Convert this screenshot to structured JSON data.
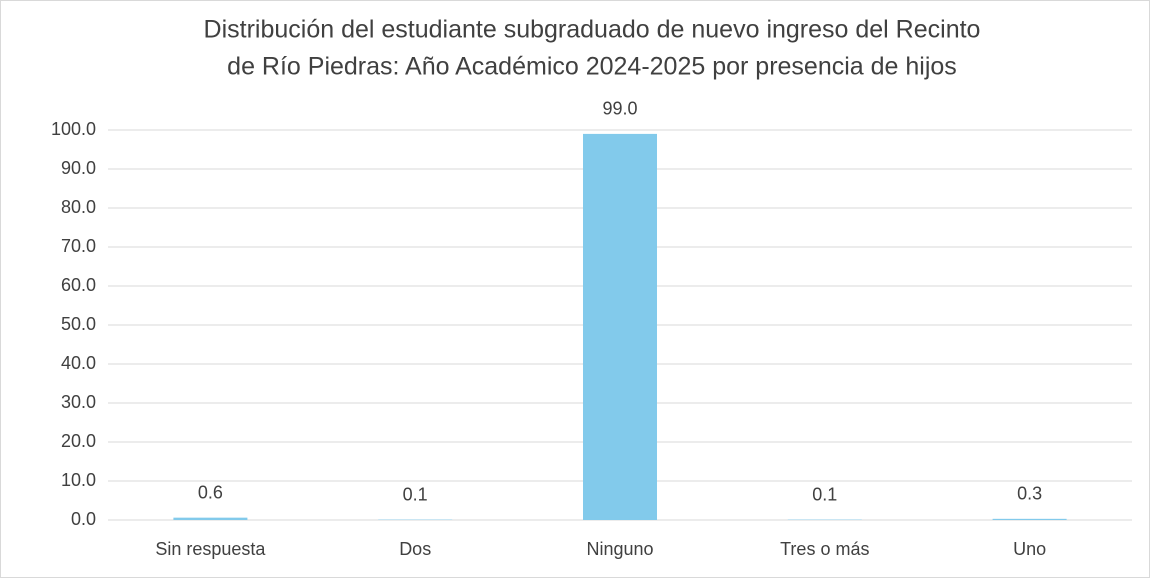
{
  "chart_data": {
    "type": "bar",
    "title": [
      "Distribución del estudiante subgraduado de nuevo ingreso del Recinto",
      "de Río Piedras: Año Académico 2024-2025 por presencia de hijos"
    ],
    "categories": [
      "Sin respuesta",
      "Dos",
      "Ninguno",
      "Tres o más",
      "Uno"
    ],
    "values": [
      0.6,
      0.1,
      99.0,
      0.1,
      0.3
    ],
    "value_labels": [
      "0.6",
      "0.1",
      "99.0",
      "0.1",
      "0.3"
    ],
    "color": "#82caeb",
    "ylim": [
      0,
      100
    ],
    "yticks": [
      {
        "value": 0,
        "label": "0.0"
      },
      {
        "value": 10,
        "label": "10.0"
      },
      {
        "value": 20,
        "label": "20.0"
      },
      {
        "value": 30,
        "label": "30.0"
      },
      {
        "value": 40,
        "label": "40.0"
      },
      {
        "value": 50,
        "label": "50.0"
      },
      {
        "value": 60,
        "label": "60.0"
      },
      {
        "value": 70,
        "label": "70.0"
      },
      {
        "value": 80,
        "label": "80.0"
      },
      {
        "value": 90,
        "label": "90.0"
      },
      {
        "value": 100,
        "label": "100.0"
      }
    ],
    "grid": true
  }
}
